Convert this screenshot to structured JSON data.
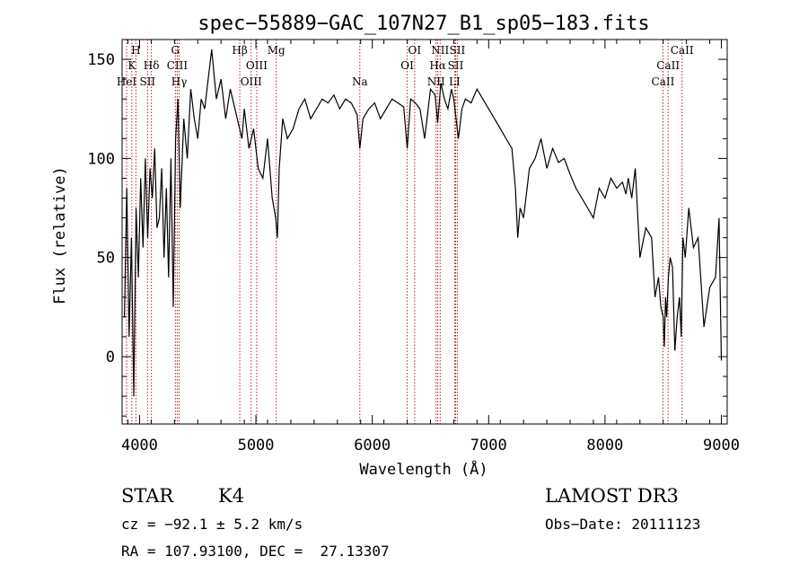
{
  "chart_data": {
    "type": "line",
    "title": "spec−55889−GAC_107N27_B1_sp05−183.fits",
    "xlabel": "Wavelength (Å)",
    "ylabel": "Flux (relative)",
    "xlim": [
      3850,
      9050
    ],
    "ylim": [
      -34,
      160
    ],
    "xticks": [
      4000,
      5000,
      6000,
      7000,
      8000,
      9000
    ],
    "yticks": [
      0,
      50,
      100,
      150
    ],
    "grid": false,
    "spectrum": {
      "x": [
        3870,
        3890,
        3910,
        3930,
        3950,
        3970,
        3990,
        4010,
        4030,
        4050,
        4070,
        4090,
        4110,
        4130,
        4150,
        4170,
        4190,
        4210,
        4230,
        4250,
        4270,
        4290,
        4310,
        4330,
        4350,
        4380,
        4410,
        4440,
        4470,
        4500,
        4530,
        4560,
        4590,
        4620,
        4660,
        4700,
        4740,
        4780,
        4820,
        4860,
        4880,
        4900,
        4940,
        4980,
        5020,
        5060,
        5100,
        5140,
        5170,
        5185,
        5200,
        5230,
        5270,
        5320,
        5370,
        5420,
        5470,
        5520,
        5570,
        5620,
        5670,
        5720,
        5770,
        5820,
        5870,
        5893,
        5920,
        5970,
        6020,
        6070,
        6120,
        6170,
        6220,
        6270,
        6300,
        6330,
        6370,
        6410,
        6450,
        6500,
        6540,
        6562,
        6590,
        6620,
        6650,
        6680,
        6700,
        6720,
        6740,
        6770,
        6800,
        6850,
        6900,
        6950,
        7000,
        7050,
        7100,
        7150,
        7200,
        7230,
        7250,
        7270,
        7300,
        7350,
        7400,
        7450,
        7500,
        7550,
        7600,
        7650,
        7700,
        7750,
        7800,
        7850,
        7900,
        7950,
        8000,
        8050,
        8100,
        8150,
        8180,
        8200,
        8230,
        8260,
        8300,
        8350,
        8400,
        8430,
        8460,
        8480,
        8500,
        8510,
        8520,
        8530,
        8545,
        8560,
        8580,
        8600,
        8620,
        8640,
        8655,
        8670,
        8690,
        8720,
        8760,
        8800,
        8850,
        8900,
        8950,
        8980,
        9000
      ],
      "y": [
        20,
        85,
        10,
        60,
        -20,
        75,
        40,
        90,
        55,
        100,
        60,
        95,
        80,
        105,
        65,
        70,
        95,
        50,
        85,
        40,
        100,
        25,
        110,
        130,
        75,
        120,
        100,
        135,
        120,
        110,
        130,
        125,
        140,
        155,
        130,
        140,
        120,
        135,
        125,
        115,
        110,
        125,
        105,
        115,
        95,
        90,
        110,
        80,
        70,
        60,
        95,
        120,
        110,
        115,
        125,
        130,
        120,
        125,
        130,
        128,
        132,
        125,
        130,
        128,
        122,
        105,
        120,
        125,
        128,
        120,
        125,
        130,
        128,
        126,
        105,
        130,
        128,
        125,
        110,
        135,
        132,
        118,
        138,
        130,
        125,
        135,
        130,
        120,
        110,
        125,
        130,
        128,
        135,
        130,
        125,
        120,
        115,
        110,
        105,
        85,
        60,
        75,
        70,
        95,
        100,
        110,
        95,
        105,
        98,
        100,
        92,
        85,
        80,
        75,
        70,
        85,
        80,
        90,
        85,
        88,
        82,
        90,
        80,
        95,
        50,
        65,
        60,
        30,
        40,
        25,
        20,
        5,
        30,
        20,
        40,
        50,
        45,
        3,
        20,
        30,
        10,
        60,
        50,
        75,
        55,
        60,
        15,
        35,
        40,
        70,
        -2
      ],
      "color": "#000000"
    },
    "lines": [
      {
        "name": "K",
        "x": 3933.7,
        "row": 1
      },
      {
        "name": "H",
        "x": 3968.5,
        "row": 0
      },
      {
        "name": "HeI",
        "x": 3888.6,
        "row": 2
      },
      {
        "name": "SII",
        "x": 4068.6,
        "row": 2
      },
      {
        "name": "Hδ",
        "x": 4101.7,
        "row": 1
      },
      {
        "name": "G",
        "x": 4307.9,
        "row": 0
      },
      {
        "name": "CIII",
        "x": 4324.0,
        "row": 1
      },
      {
        "name": "Hγ",
        "x": 4340.5,
        "row": 2
      },
      {
        "name": "Hβ",
        "x": 4861.3,
        "row": 0
      },
      {
        "name": "OIII",
        "x": 4959.0,
        "row": 2
      },
      {
        "name": "OIII",
        "x": 5006.8,
        "row": 1
      },
      {
        "name": "Mg",
        "x": 5175.0,
        "row": 0
      },
      {
        "name": "Na",
        "x": 5893.0,
        "row": 2
      },
      {
        "name": "OI",
        "x": 6300.3,
        "row": 1
      },
      {
        "name": "OI",
        "x": 6363.8,
        "row": 0
      },
      {
        "name": "NII",
        "x": 6548.0,
        "row": 2
      },
      {
        "name": "Hα",
        "x": 6562.8,
        "row": 1
      },
      {
        "name": "NII",
        "x": 6583.5,
        "row": 0
      },
      {
        "name": "SII",
        "x": 6716.4,
        "row": 1
      },
      {
        "name": "SII",
        "x": 6730.8,
        "row": 0
      },
      {
        "name": "LI",
        "x": 6707.8,
        "row": 2
      },
      {
        "name": "CaII",
        "x": 8498.0,
        "row": 2
      },
      {
        "name": "CaII",
        "x": 8542.1,
        "row": 1
      },
      {
        "name": "CaII",
        "x": 8662.1,
        "row": 0
      }
    ],
    "line_color": "#b22222"
  },
  "info": {
    "class": "STAR",
    "subclass": "K4",
    "survey": "LAMOST DR3",
    "cz": "cz = −92.1 ± 5.2 km/s",
    "obs_date": "Obs−Date: 20111123",
    "coords": "RA = 107.93100, DEC =  27.13307"
  }
}
